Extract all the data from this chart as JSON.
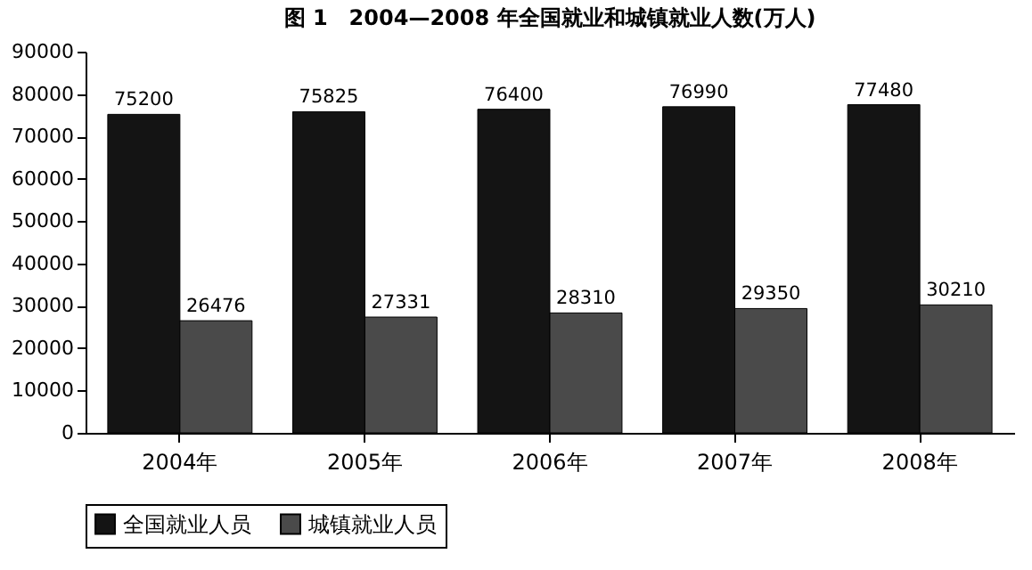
{
  "chart_data": {
    "type": "bar",
    "title": "图 1　2004—2008 年全国就业和城镇就业人数(万人)",
    "categories": [
      "2004年",
      "2005年",
      "2006年",
      "2007年",
      "2008年"
    ],
    "series": [
      {
        "name": "全国就业人员",
        "color": "#141414",
        "values": [
          75200,
          75825,
          76400,
          76990,
          77480
        ]
      },
      {
        "name": "城镇就业人员",
        "color": "#4a4a4a",
        "values": [
          26476,
          27331,
          28310,
          29350,
          30210
        ]
      }
    ],
    "ylim": [
      0,
      90000
    ],
    "yticks": [
      0,
      10000,
      20000,
      30000,
      40000,
      50000,
      60000,
      70000,
      80000,
      90000
    ],
    "data_labels": true,
    "grid": false,
    "legend": "bottom"
  }
}
